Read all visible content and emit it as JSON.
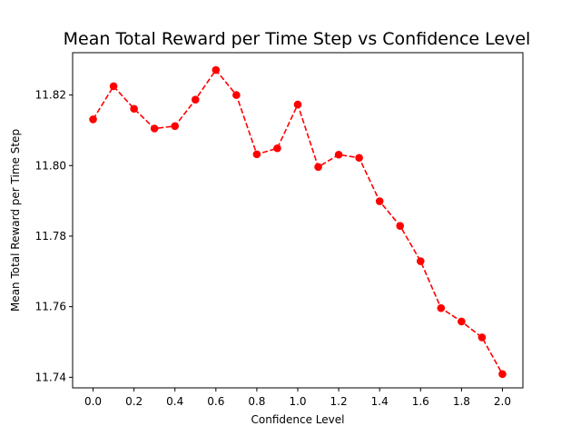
{
  "chart_data": {
    "type": "line",
    "title": "Mean Total Reward per Time Step vs Confidence Level",
    "xlabel": "Confidence Level",
    "ylabel": "Mean Total Reward per Time Step",
    "xlim": [
      -0.1,
      2.1
    ],
    "ylim": [
      11.737,
      11.832
    ],
    "xticks": [
      0.0,
      0.2,
      0.4,
      0.6,
      0.8,
      1.0,
      1.2,
      1.4,
      1.6,
      1.8,
      2.0
    ],
    "xtick_labels": [
      "0.0",
      "0.2",
      "0.4",
      "0.6",
      "0.8",
      "1.0",
      "1.2",
      "1.4",
      "1.6",
      "1.8",
      "2.0"
    ],
    "yticks": [
      11.74,
      11.76,
      11.78,
      11.8,
      11.82
    ],
    "ytick_labels": [
      "11.74",
      "11.76",
      "11.78",
      "11.80",
      "11.82"
    ],
    "grid": false,
    "x": [
      0.0,
      0.1,
      0.2,
      0.3,
      0.4,
      0.5,
      0.6,
      0.7,
      0.8,
      0.9,
      1.0,
      1.1,
      1.2,
      1.3,
      1.4,
      1.5,
      1.6,
      1.7,
      1.8,
      1.9,
      2.0
    ],
    "series": [
      {
        "color": "#ff0000",
        "linestyle": "dashed",
        "marker": "circle",
        "values": [
          11.8131,
          11.8225,
          11.8161,
          11.8105,
          11.8112,
          11.8187,
          11.8271,
          11.82,
          11.8032,
          11.8049,
          11.8173,
          11.7996,
          11.8031,
          11.8022,
          11.7899,
          11.7829,
          11.7729,
          11.7596,
          11.7558,
          11.7513,
          11.7409
        ]
      }
    ]
  }
}
